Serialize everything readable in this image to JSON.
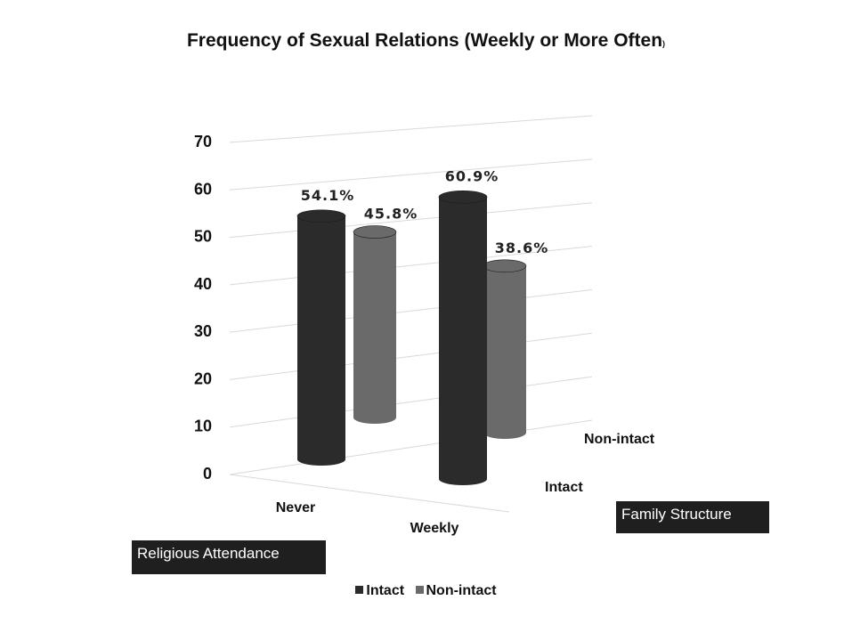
{
  "chart_data": {
    "type": "bar",
    "title": "Frequency of Sexual Relations (Weekly or More Often",
    "title_suffix": ")",
    "categories": [
      "Never",
      "Weekly"
    ],
    "series": [
      {
        "name": "Intact",
        "values": [
          54.1,
          60.9
        ],
        "labels": [
          "54.1%",
          "60.9%"
        ],
        "color": "#2b2b2b"
      },
      {
        "name": "Non-intact",
        "values": [
          45.8,
          38.6
        ],
        "labels": [
          "45.8%",
          "38.6%"
        ],
        "color": "#6a6a6a"
      }
    ],
    "y_ticks": [
      "0",
      "10",
      "20",
      "30",
      "40",
      "50",
      "60",
      "70"
    ],
    "ylim": [
      0,
      70
    ],
    "depth_labels": [
      "Intact",
      "Non-intact"
    ],
    "x_axis_title": "Religious Attendance",
    "depth_axis_title": "Family Structure",
    "legend": [
      "Intact",
      "Non-intact"
    ],
    "legend_position": "bottom",
    "grid": true,
    "style": "3d-cylinder"
  }
}
